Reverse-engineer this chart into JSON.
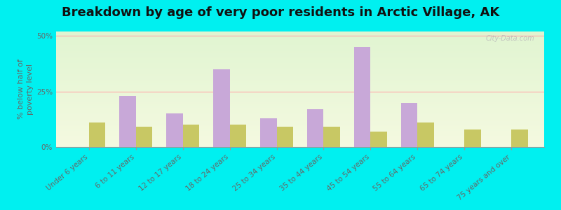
{
  "title": "Breakdown by age of very poor residents in Arctic Village, AK",
  "ylabel": "% below half of\npoverty level",
  "categories": [
    "Under 6 years",
    "6 to 11 years",
    "12 to 17 years",
    "18 to 24 years",
    "25 to 34 years",
    "35 to 44 years",
    "45 to 54 years",
    "55 to 64 years",
    "65 to 74 years",
    "75 years and over"
  ],
  "arctic_village": [
    0,
    23,
    15,
    35,
    13,
    17,
    45,
    20,
    0,
    0
  ],
  "alaska": [
    11,
    9,
    10,
    10,
    9,
    9,
    7,
    11,
    8,
    8
  ],
  "arctic_color": "#c8a8d8",
  "alaska_color": "#c8c864",
  "ylim": [
    0,
    52
  ],
  "yticks": [
    0,
    25,
    50
  ],
  "ytick_labels": [
    "0%",
    "25%",
    "50%"
  ],
  "outer_background": "#00f0f0",
  "bar_width": 0.35,
  "title_fontsize": 13,
  "axis_label_fontsize": 8,
  "tick_fontsize": 7.5,
  "watermark": "City-Data.com",
  "legend_fontsize": 9
}
